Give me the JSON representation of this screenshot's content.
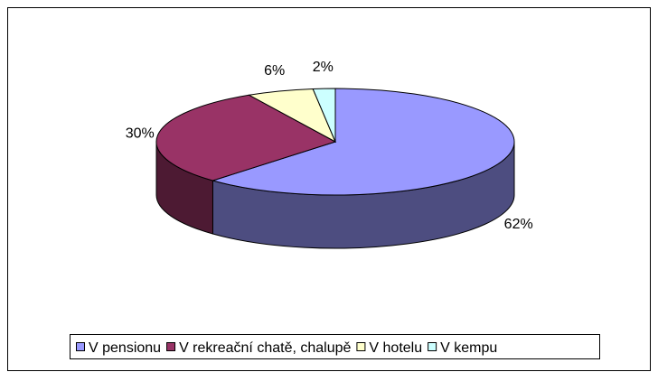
{
  "chart_data": {
    "type": "pie3d",
    "categories": [
      "V pensionu",
      "V rekreační chatě, chalupě",
      "V hotelu",
      "V kempu"
    ],
    "values": [
      62,
      30,
      6,
      2
    ],
    "value_labels": [
      "62%",
      "30%",
      "6%",
      "2%"
    ],
    "colors": [
      "#9999ff",
      "#993366",
      "#ffffcc",
      "#ccffff"
    ],
    "legend": "bottom"
  }
}
